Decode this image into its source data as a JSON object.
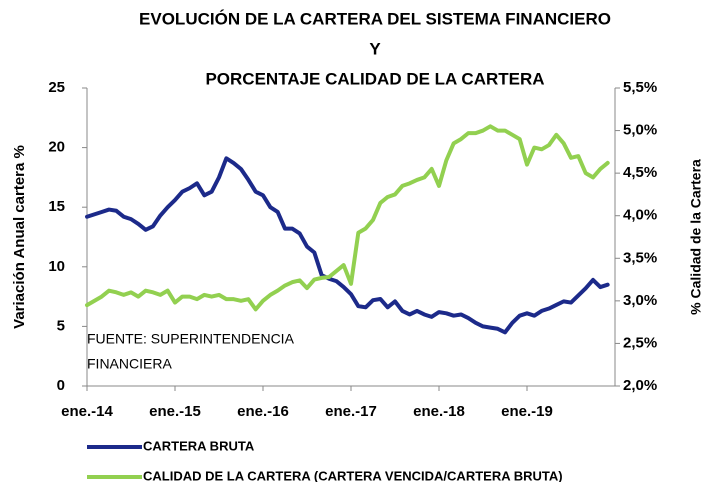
{
  "chart_data": {
    "type": "line",
    "title": [
      "EVOLUCIÓN DE LA CARTERA DEL SISTEMA FINANCIERO",
      "Y",
      "PORCENTAJE CALIDAD DE LA CARTERA"
    ],
    "y_label": "Variación Anual cartera %",
    "y2_label": "% Calidad de la Cartera",
    "annotation": [
      "FUENTE: SUPERINTENDENCIA",
      "FINANCIERA"
    ],
    "categories": [
      "ene.-14",
      null,
      null,
      null,
      null,
      null,
      null,
      null,
      null,
      null,
      null,
      null,
      "ene.-15",
      null,
      null,
      null,
      null,
      null,
      null,
      null,
      null,
      null,
      null,
      null,
      "ene.-16",
      null,
      null,
      null,
      null,
      null,
      null,
      null,
      null,
      null,
      null,
      null,
      "ene.-17",
      null,
      null,
      null,
      null,
      null,
      null,
      null,
      null,
      null,
      null,
      null,
      "ene.-18",
      null,
      null,
      null,
      null,
      null,
      null,
      null,
      null,
      null,
      null,
      null,
      "ene.-19",
      null,
      null,
      null,
      null,
      null,
      null,
      null,
      null,
      null,
      null,
      null
    ],
    "ylim": [
      0,
      25
    ],
    "yticks": [
      0,
      5,
      10,
      15,
      20,
      25
    ],
    "y2lim": [
      2.0,
      5.5
    ],
    "y2ticks": [
      {
        "value": 2.0,
        "label": "2,0%"
      },
      {
        "value": 2.5,
        "label": "2,5%"
      },
      {
        "value": 3.0,
        "label": "3,0%"
      },
      {
        "value": 3.5,
        "label": "3,5%"
      },
      {
        "value": 4.0,
        "label": "4,0%"
      },
      {
        "value": 4.5,
        "label": "4,5%"
      },
      {
        "value": 5.0,
        "label": "5,0%"
      },
      {
        "value": 5.5,
        "label": "5,5%"
      }
    ],
    "grid": false,
    "legend": "bottom",
    "series": [
      {
        "name": "CARTERA BRUTA",
        "color": "#1c2a8a",
        "values": [
          14.2,
          14.4,
          14.6,
          14.8,
          14.7,
          14.2,
          14.0,
          13.6,
          13.1,
          13.4,
          14.3,
          15.0,
          15.6,
          16.3,
          16.6,
          17.0,
          16.0,
          16.3,
          17.5,
          19.1,
          18.7,
          18.2,
          17.3,
          16.3,
          16.0,
          15.0,
          14.6,
          13.2,
          13.2,
          12.8,
          11.7,
          11.2,
          9.3,
          9.0,
          8.8,
          8.3,
          7.7,
          6.7,
          6.6,
          7.2,
          7.3,
          6.6,
          7.1,
          6.3,
          6.0,
          6.3,
          6.0,
          5.8,
          6.2,
          6.1,
          5.9,
          6.0,
          5.7,
          5.3,
          5.0,
          4.9,
          4.8,
          4.5,
          5.3,
          5.9,
          6.1,
          5.9,
          6.3,
          6.5,
          6.8,
          7.1,
          7.0,
          7.6,
          8.2,
          8.9,
          8.3,
          8.5
        ]
      },
      {
        "name": "CALIDAD DE LA CARTERA (CARTERA VENCIDA/CARTERA BRUTA)",
        "color": "#92d050",
        "axis": "y2",
        "values": [
          2.95,
          3.0,
          3.05,
          3.12,
          3.1,
          3.07,
          3.1,
          3.05,
          3.12,
          3.1,
          3.07,
          3.12,
          2.98,
          3.05,
          3.05,
          3.02,
          3.07,
          3.05,
          3.07,
          3.02,
          3.02,
          3.0,
          3.02,
          2.9,
          3.0,
          3.07,
          3.12,
          3.18,
          3.22,
          3.24,
          3.15,
          3.25,
          3.27,
          3.28,
          3.35,
          3.42,
          3.2,
          3.8,
          3.85,
          3.95,
          4.15,
          4.22,
          4.25,
          4.35,
          4.38,
          4.42,
          4.45,
          4.55,
          4.35,
          4.65,
          4.85,
          4.9,
          4.97,
          4.97,
          5.0,
          5.05,
          5.0,
          5.0,
          4.95,
          4.9,
          4.6,
          4.8,
          4.78,
          4.83,
          4.95,
          4.85,
          4.68,
          4.7,
          4.5,
          4.45,
          4.55,
          4.62
        ]
      }
    ]
  }
}
